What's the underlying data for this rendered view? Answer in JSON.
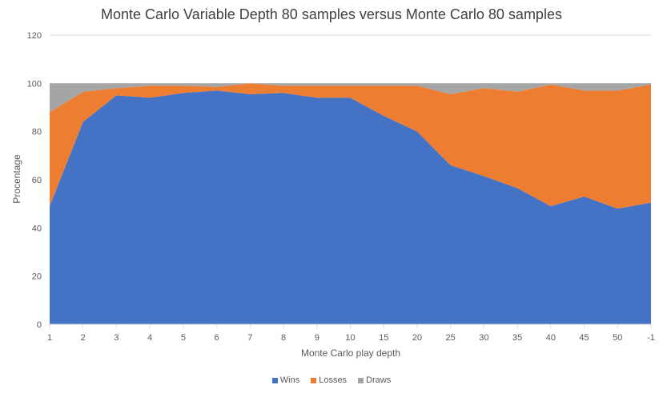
{
  "chart_data": {
    "type": "area",
    "stacked": true,
    "title": "Monte Carlo Variable Depth 80 samples versus Monte Carlo 80 samples",
    "xlabel": "Monte  Carlo play depth",
    "ylabel": "Procentage",
    "ylim": [
      0,
      120
    ],
    "yticks": [
      0,
      20,
      40,
      60,
      80,
      100,
      120
    ],
    "grid": true,
    "legend_position": "bottom",
    "categories": [
      "1",
      "2",
      "3",
      "4",
      "5",
      "6",
      "7",
      "8",
      "9",
      "10",
      "15",
      "20",
      "25",
      "30",
      "35",
      "40",
      "45",
      "50",
      "-1"
    ],
    "series": [
      {
        "name": "Wins",
        "color": "#4472C4",
        "values": [
          49,
          84,
          95,
          94,
          96,
          97,
          95.5,
          96,
          94,
          94,
          86.5,
          80,
          66,
          61.5,
          56.5,
          49,
          53,
          48,
          50.5
        ]
      },
      {
        "name": "Losses",
        "color": "#ED7D31",
        "values": [
          39,
          12.5,
          3,
          5,
          3,
          1.5,
          4.5,
          3,
          5,
          5,
          12.5,
          19,
          29.5,
          36.5,
          40,
          50.5,
          44,
          49,
          49
        ]
      },
      {
        "name": "Draws",
        "color": "#A5A5A5",
        "values": [
          12,
          3.5,
          2,
          1,
          1,
          1.5,
          0,
          1,
          1,
          1,
          1,
          1,
          4.5,
          2,
          3.5,
          0.5,
          3,
          3,
          0.5
        ]
      }
    ]
  }
}
